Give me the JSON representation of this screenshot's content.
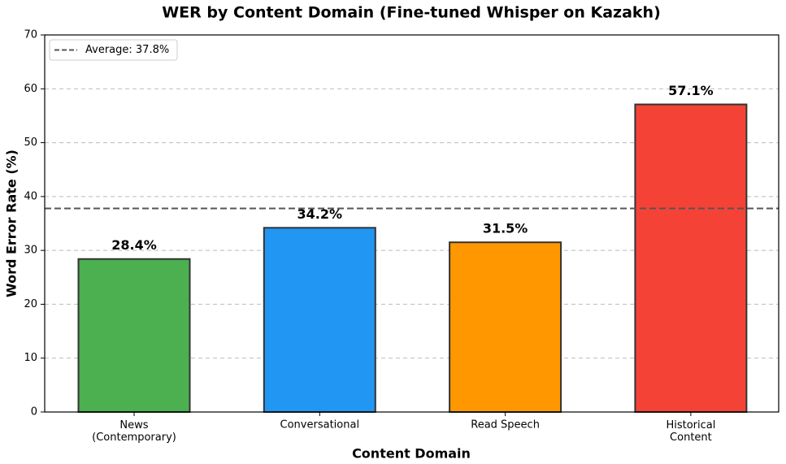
{
  "chart_data": {
    "type": "bar",
    "title": "WER by Content Domain (Fine-tuned Whisper on Kazakh)",
    "x_label": "Content Domain",
    "y_label": "Word Error Rate (%)",
    "categories": [
      "News\n(Contemporary)",
      "Conversational",
      "Read Speech",
      "Historical\nContent"
    ],
    "values": [
      28.4,
      34.2,
      31.5,
      57.1
    ],
    "value_labels": [
      "28.4%",
      "34.2%",
      "31.5%",
      "57.1%"
    ],
    "colors": [
      "#4caf50",
      "#2196f3",
      "#ff9800",
      "#f44336"
    ],
    "ylim": [
      0,
      70
    ],
    "yticks": [
      0,
      10,
      20,
      30,
      40,
      50,
      60,
      70
    ],
    "grid": true,
    "average": {
      "value": 37.8,
      "label": "Average: 37.8%"
    },
    "legend": "upper left"
  }
}
